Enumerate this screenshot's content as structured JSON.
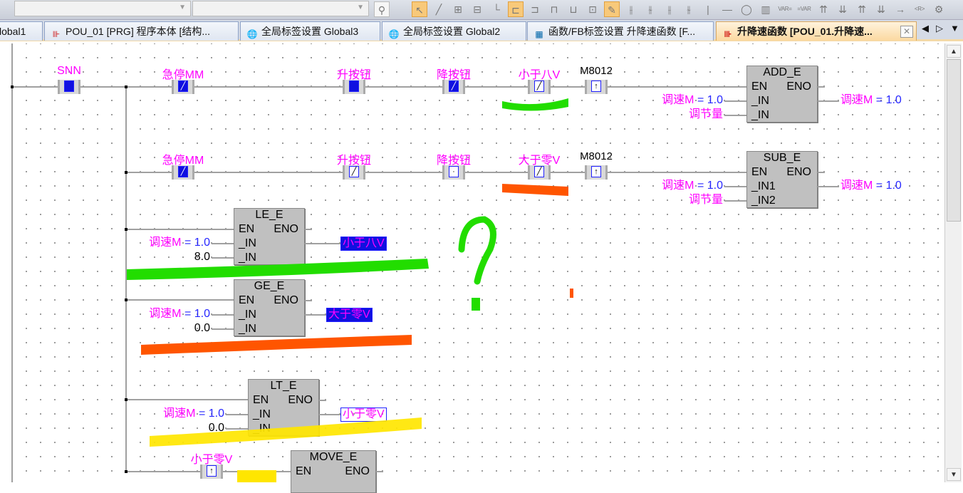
{
  "toolbar": {
    "dropdown1_value": "",
    "dropdown2_value": "",
    "tools": [
      "select",
      "line",
      "vline",
      "delete-line",
      "arrow-line",
      "contact-a",
      "contact-b",
      "coil",
      "function",
      "func-edit",
      "write-mode",
      "F5",
      "F6",
      "F7",
      "F8",
      "F9",
      "-",
      "O",
      "FB",
      "VAR=",
      "=VAR",
      "P",
      "F",
      "P-",
      "F-",
      "->",
      "<R>",
      "tag"
    ]
  },
  "tabs": [
    {
      "label": "lobal1",
      "icon": "globe-icon"
    },
    {
      "label": "POU_01 [PRG] 程序本体 [结构...",
      "icon": "ladder-program-icon"
    },
    {
      "label": "全局标签设置 Global3",
      "icon": "globe-icon"
    },
    {
      "label": "全局标签设置 Global2",
      "icon": "globe-icon"
    },
    {
      "label": "函数/FB标签设置 升降速函数 [F...",
      "icon": "table-icon"
    },
    {
      "label": "升降速函数 [POU_01.升降速...",
      "icon": "ladder-program-icon",
      "active": true
    }
  ],
  "tab_nav": {
    "prev": "◀",
    "next": "▷",
    "menu": "▼",
    "close": "✕"
  },
  "ladder": {
    "rung1": {
      "contacts": [
        {
          "label": "SNN",
          "type": "no",
          "on": true
        },
        {
          "label": "急停MM",
          "type": "nc",
          "on": true
        },
        {
          "label": "升按钮",
          "type": "no",
          "on": true
        },
        {
          "label": "降按钮",
          "type": "nc",
          "on": true
        },
        {
          "label": "小于八V",
          "type": "nc",
          "on": false
        },
        {
          "label": "M8012",
          "type": "rising",
          "on": false
        }
      ],
      "fb": {
        "name": "ADD_E",
        "en": "EN",
        "eno": "ENO",
        "inputs": [
          {
            "pin": "_IN",
            "var": "调速M",
            "value": "= 1.0"
          },
          {
            "pin": "_IN",
            "var": "调节量",
            "value": ""
          }
        ],
        "output": {
          "var": "调速M",
          "value": "= 1.0"
        }
      }
    },
    "rung2": {
      "contacts": [
        {
          "label": "急停MM",
          "type": "nc",
          "on": true
        },
        {
          "label": "升按钮",
          "type": "nc",
          "on": false
        },
        {
          "label": "降按钮",
          "type": "no",
          "on": false
        },
        {
          "label": "大于零V",
          "type": "nc",
          "on": false
        },
        {
          "label": "M8012",
          "type": "rising",
          "on": false
        }
      ],
      "fb": {
        "name": "SUB_E",
        "en": "EN",
        "eno": "ENO",
        "inputs": [
          {
            "pin": "_IN1",
            "var": "调速M",
            "value": "= 1.0"
          },
          {
            "pin": "_IN2",
            "var": "调节量",
            "value": ""
          }
        ],
        "output": {
          "var": "调速M",
          "value": "= 1.0"
        }
      }
    },
    "rung3": {
      "fb": {
        "name": "LE_E",
        "en": "EN",
        "eno": "ENO",
        "inputs": [
          {
            "pin": "_IN",
            "var": "调速M",
            "value": "= 1.0"
          },
          {
            "pin": "_IN",
            "var": "",
            "value": "8.0"
          }
        ],
        "output": {
          "var": "小于八V",
          "on": true
        }
      }
    },
    "rung4": {
      "fb": {
        "name": "GE_E",
        "en": "EN",
        "eno": "ENO",
        "inputs": [
          {
            "pin": "_IN",
            "var": "调速M",
            "value": "= 1.0"
          },
          {
            "pin": "_IN",
            "var": "",
            "value": "0.0"
          }
        ],
        "output": {
          "var": "大于零V",
          "on": true
        }
      }
    },
    "rung5": {
      "fb": {
        "name": "LT_E",
        "en": "EN",
        "eno": "ENO",
        "inputs": [
          {
            "pin": "_IN",
            "var": "调速M",
            "value": "= 1.0"
          },
          {
            "pin": "_IN",
            "var": "",
            "value": "0.0"
          }
        ],
        "output": {
          "var": "小于零V",
          "on": false
        }
      }
    },
    "rung6": {
      "contacts": [
        {
          "label": "小于零V",
          "type": "rising",
          "on": false
        }
      ],
      "fb": {
        "name": "MOVE_E",
        "en": "EN",
        "eno": "ENO"
      }
    }
  },
  "annotations": {
    "colors": {
      "green": "#22dd00",
      "orange": "#ff5500",
      "yellow": "#ffe600"
    }
  },
  "colors": {
    "variable": "#ff00ff",
    "value": "#2626ff",
    "contact_on": "#1010e0",
    "active_tab": "#fbd9a0"
  }
}
